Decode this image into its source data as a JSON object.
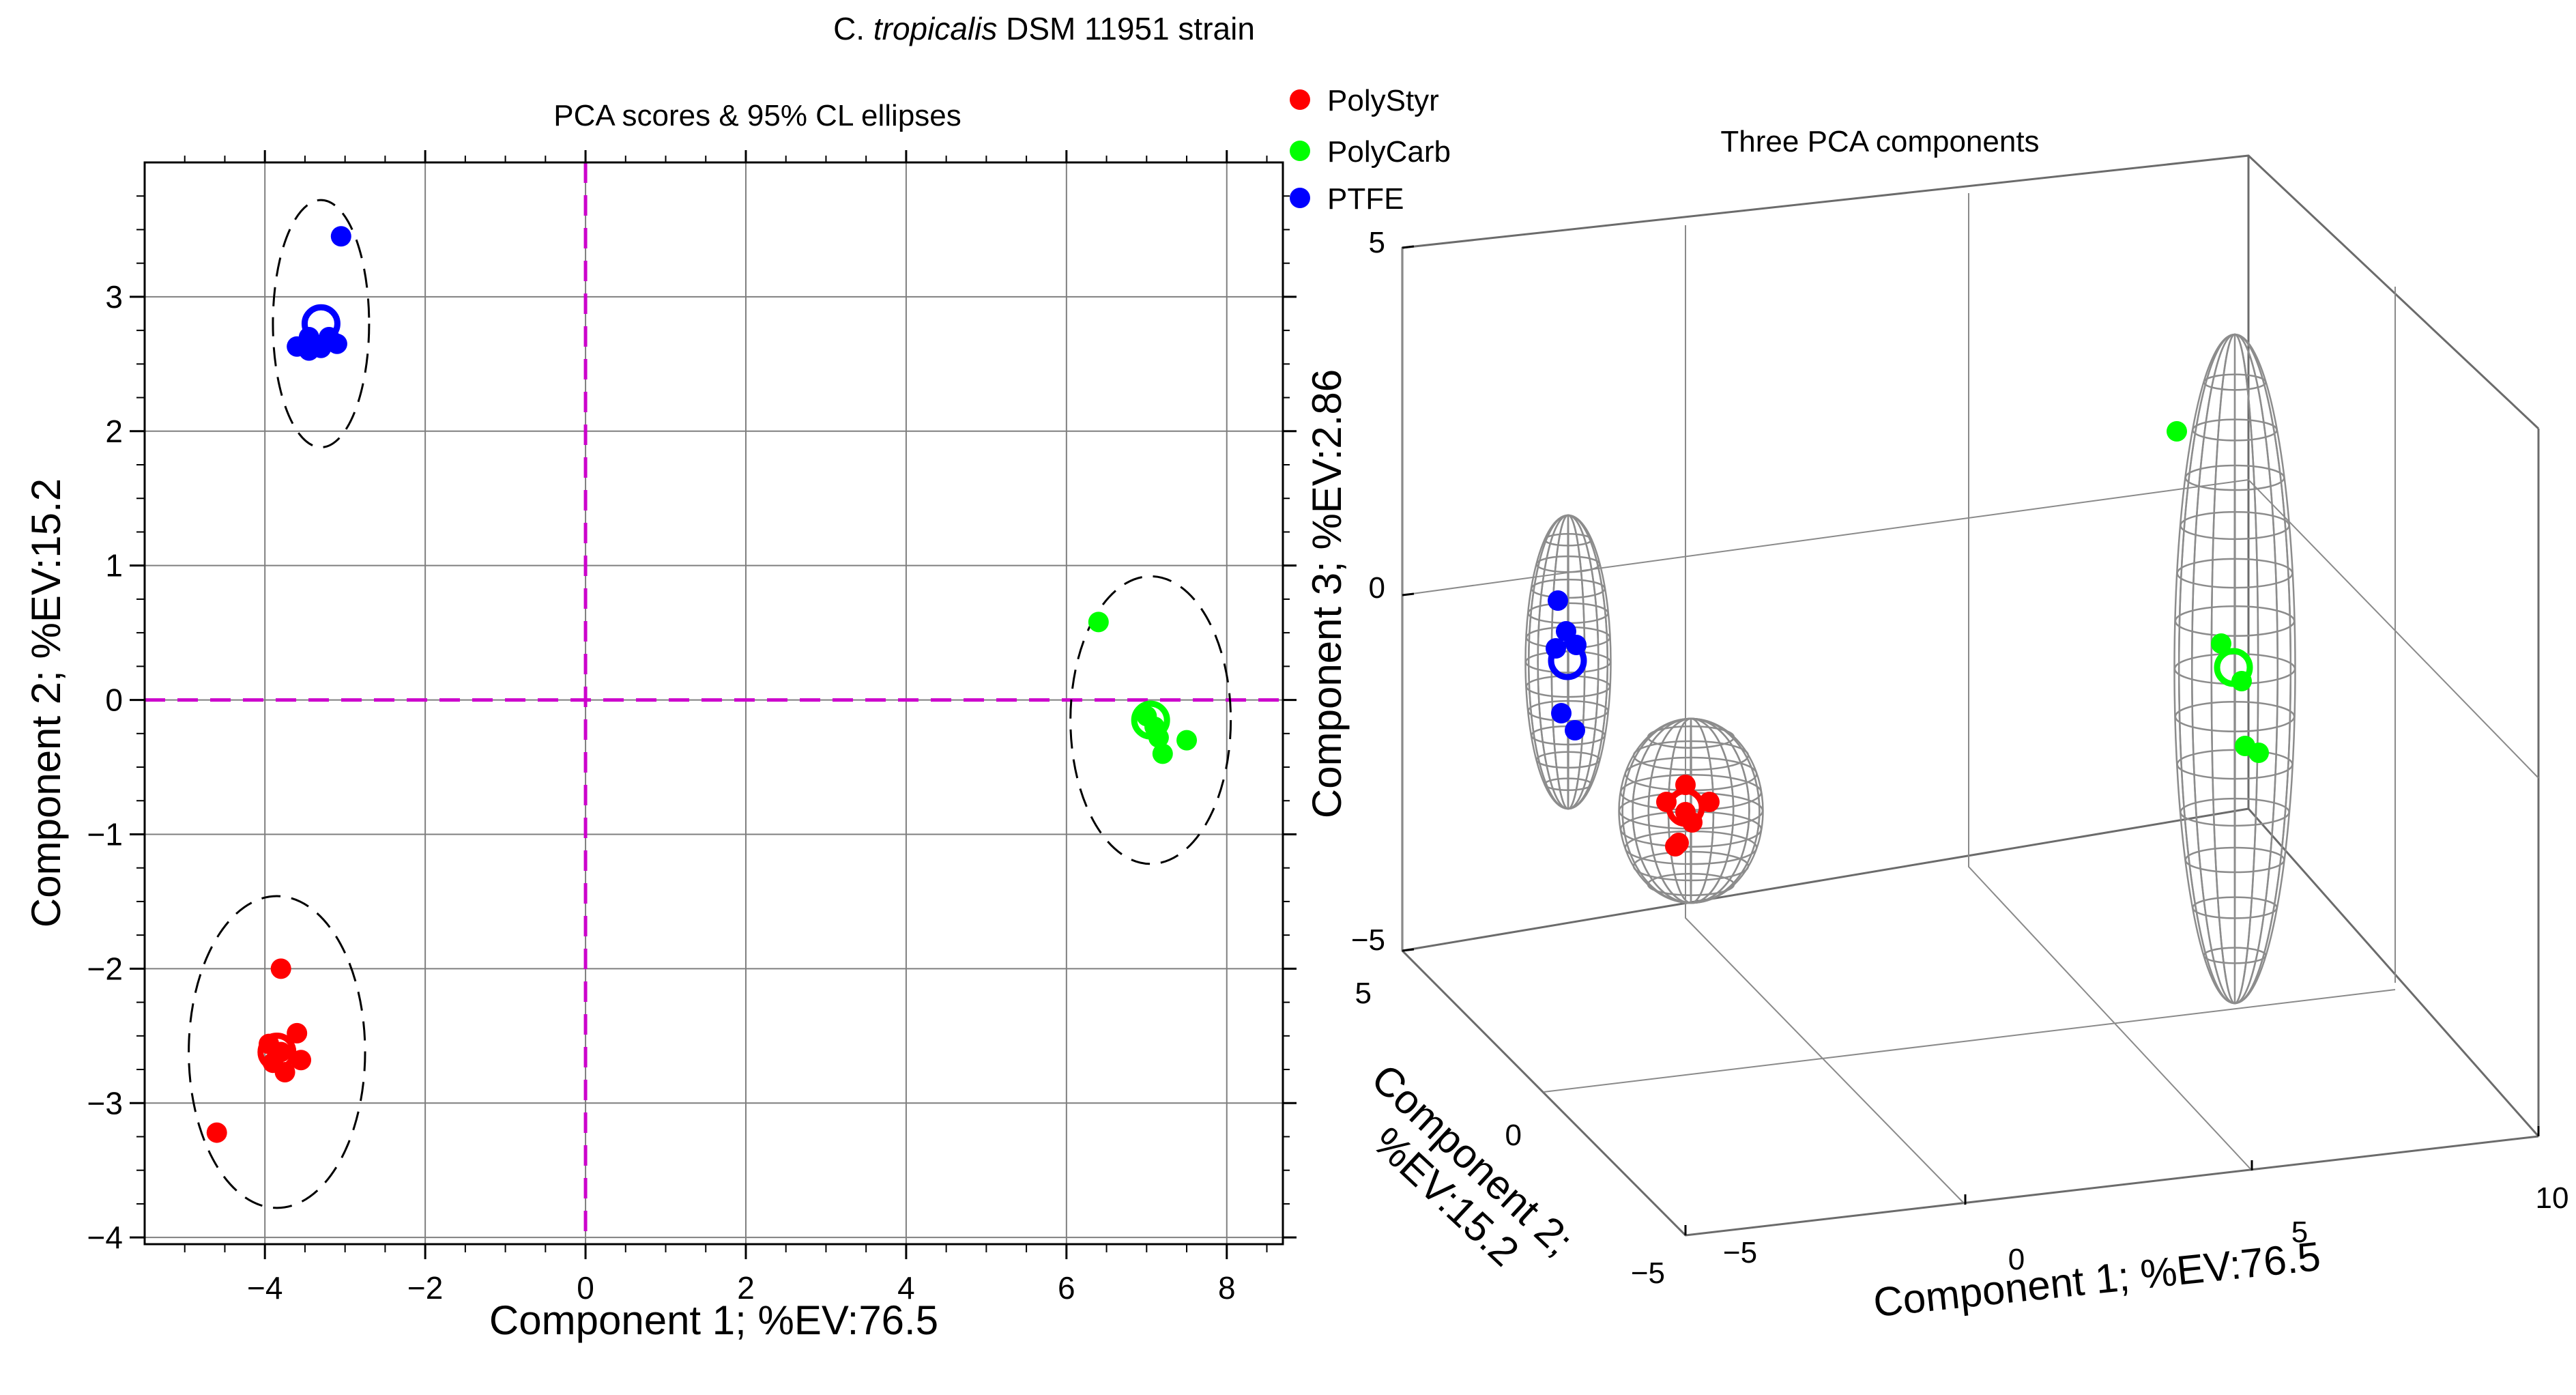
{
  "title": {
    "prefix": "C. ",
    "species": "tropicalis",
    "suffix": " DSM 11951 strain"
  },
  "legend": [
    {
      "label": "PolyStyr",
      "color": "#ff0000"
    },
    {
      "label": "PolyCarb",
      "color": "#00ff00"
    },
    {
      "label": "PTFE",
      "color": "#0000ff"
    }
  ],
  "chart_data": [
    {
      "type": "scatter",
      "title": "PCA scores & 95% CL ellipses",
      "xlabel": "Component 1; %EV:76.5",
      "ylabel": "Component 2; %EV:15.2",
      "xlim": [
        -5.5,
        8.7
      ],
      "ylim": [
        -4.05,
        4.0
      ],
      "xticks": [
        -4,
        -2,
        0,
        2,
        4,
        6,
        8
      ],
      "yticks": [
        -4,
        -3,
        -2,
        -1,
        0,
        1,
        2,
        3
      ],
      "xtick_labels": [
        "−4",
        "−2",
        "0",
        "2",
        "4",
        "6",
        "8"
      ],
      "ytick_labels": [
        "−4",
        "−3",
        "−2",
        "−1",
        "0",
        "1",
        "2",
        "3"
      ],
      "grid": true,
      "origin_lines_color": "#cc00cc",
      "series": [
        {
          "name": "PolyStyr",
          "color": "#ff0000",
          "points": [
            [
              -3.8,
              -2.0
            ],
            [
              -4.6,
              -3.22
            ],
            [
              -3.6,
              -2.48
            ],
            [
              -3.55,
              -2.68
            ],
            [
              -3.9,
              -2.7
            ],
            [
              -3.75,
              -2.77
            ],
            [
              -3.95,
              -2.56
            ],
            [
              -3.8,
              -2.62
            ]
          ],
          "centroid": [
            -3.85,
            -2.62
          ],
          "ellipse": {
            "center": [
              -3.85,
              -2.62
            ],
            "rx": 1.1,
            "ry": 1.16
          }
        },
        {
          "name": "PolyCarb",
          "color": "#00ff00",
          "points": [
            [
              6.4,
              0.58
            ],
            [
              7.15,
              -0.28
            ],
            [
              7.5,
              -0.3
            ],
            [
              7.2,
              -0.4
            ],
            [
              7.0,
              -0.12
            ],
            [
              7.1,
              -0.2
            ]
          ],
          "centroid": [
            7.05,
            -0.15
          ],
          "ellipse": {
            "center": [
              7.05,
              -0.15
            ],
            "rx": 1.0,
            "ry": 1.07
          }
        },
        {
          "name": "PTFE",
          "color": "#0000ff",
          "points": [
            [
              -3.05,
              3.45
            ],
            [
              -3.6,
              2.63
            ],
            [
              -3.45,
              2.6
            ],
            [
              -3.3,
              2.62
            ],
            [
              -3.1,
              2.65
            ],
            [
              -3.45,
              2.7
            ],
            [
              -3.2,
              2.7
            ]
          ],
          "centroid": [
            -3.3,
            2.8
          ],
          "ellipse": {
            "center": [
              -3.3,
              2.8
            ],
            "rx": 0.6,
            "ry": 0.92
          }
        }
      ]
    },
    {
      "type": "scatter",
      "title": "Three PCA components",
      "xlabel": "Component 1; %EV:76.5",
      "ylabel": "Component 2;\n%EV:15.2",
      "zlabel": "Component 3; %EV:2.86",
      "xticks": [
        "−5",
        "0",
        "5",
        "10"
      ],
      "yticks": [
        "−5",
        "0",
        "5"
      ],
      "zticks": [
        "−5",
        "0",
        "5"
      ],
      "series": [
        {
          "name": "PolyStyr",
          "color": "#ff0000"
        },
        {
          "name": "PolyCarb",
          "color": "#00ff00"
        },
        {
          "name": "PTFE",
          "color": "#0000ff"
        }
      ]
    }
  ]
}
